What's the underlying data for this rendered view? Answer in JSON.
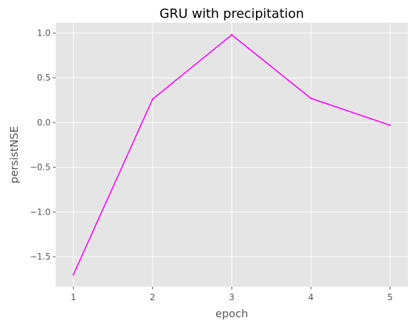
{
  "chart_data": {
    "type": "line",
    "title": "GRU with precipitation",
    "xlabel": "epoch",
    "ylabel": "persistNSE",
    "x": [
      1,
      2,
      3,
      4,
      5
    ],
    "series": [
      {
        "values": [
          -1.7,
          0.26,
          0.98,
          0.27,
          -0.03
        ]
      }
    ],
    "xticks": [
      "1",
      "2",
      "3",
      "4",
      "5"
    ],
    "yticks": [
      "1.0",
      "0.5",
      "0.0",
      "−0.5",
      "−1.0",
      "−1.5"
    ],
    "ytick_values": [
      1.0,
      0.5,
      0.0,
      -0.5,
      -1.0,
      -1.5
    ],
    "xlim": [
      0.775,
      5.225
    ],
    "ylim": [
      -1.834,
      1.114
    ],
    "grid": true,
    "colors": {
      "line": "#ff00ff",
      "plot_bg": "#e5e5e5",
      "grid": "#ffffff"
    }
  }
}
